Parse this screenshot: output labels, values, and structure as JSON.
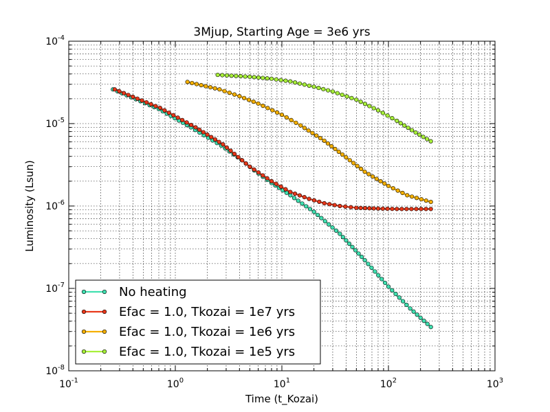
{
  "chart_data": {
    "type": "line",
    "title": "3Mjup, Starting Age = 3e6 yrs",
    "xlabel": "Time (t_Kozai)",
    "ylabel": "Luminosity (Lsun)",
    "xscale": "log",
    "yscale": "log",
    "xlim": [
      0.1,
      1000
    ],
    "ylim": [
      1e-08,
      0.0001
    ],
    "grid": true,
    "legend_position": "bottom-left",
    "x_ticks": [
      {
        "base": "10",
        "exp": "-1",
        "value": 0.1
      },
      {
        "base": "10",
        "exp": "0",
        "value": 1
      },
      {
        "base": "10",
        "exp": "1",
        "value": 10
      },
      {
        "base": "10",
        "exp": "2",
        "value": 100
      },
      {
        "base": "10",
        "exp": "3",
        "value": 1000
      }
    ],
    "y_ticks": [
      {
        "base": "10",
        "exp": "-8",
        "value": 1e-08
      },
      {
        "base": "10",
        "exp": "-7",
        "value": 1e-07
      },
      {
        "base": "10",
        "exp": "-6",
        "value": 1e-06
      },
      {
        "base": "10",
        "exp": "-5",
        "value": 1e-05
      },
      {
        "base": "10",
        "exp": "-4",
        "value": 0.0001
      }
    ],
    "series": [
      {
        "name": "No heating",
        "color": "#40e0b0",
        "x": [
          0.26,
          0.7,
          1.4,
          2.7,
          4.2,
          5.5,
          8.0,
          12,
          20,
          35,
          60,
          100,
          160,
          250
        ],
        "y": [
          2.6e-05,
          1.5e-05,
          9e-06,
          5.4e-06,
          3.6e-06,
          2.7e-06,
          1.9e-06,
          1.35e-06,
          8.5e-07,
          4.6e-07,
          2.2e-07,
          1.05e-07,
          5.7e-08,
          3.4e-08
        ]
      },
      {
        "name": "Efac = 1.0, Tkozai = 1e7 yrs",
        "color": "#e8381a",
        "x": [
          0.27,
          0.72,
          1.55,
          2.8,
          5.0,
          8.0,
          12,
          18,
          25,
          35,
          50,
          80,
          120,
          250
        ],
        "y": [
          2.6e-05,
          1.55e-05,
          9e-06,
          5.6e-06,
          3e-06,
          2e-06,
          1.48e-06,
          1.22e-06,
          1.08e-06,
          1e-06,
          9.5e-07,
          9.3e-07,
          9.2e-07,
          9.2e-07
        ]
      },
      {
        "name": "Efac = 1.0, Tkozai = 1e6 yrs",
        "color": "#f5b000",
        "x": [
          1.3,
          2.6,
          4.0,
          6.0,
          10,
          15,
          25,
          40,
          60,
          100,
          150,
          250
        ],
        "y": [
          3.2e-05,
          2.6e-05,
          2.15e-05,
          1.75e-05,
          1.28e-05,
          9.5e-06,
          6.2e-06,
          3.9e-06,
          2.6e-06,
          1.75e-06,
          1.35e-06,
          1.12e-06
        ]
      },
      {
        "name": "Efac = 1.0, Tkozai = 1e5 yrs",
        "color": "#a8f03a",
        "x": [
          2.5,
          5.0,
          8.0,
          12,
          20,
          30,
          50,
          80,
          120,
          180,
          250
        ],
        "y": [
          3.9e-05,
          3.7e-05,
          3.5e-05,
          3.25e-05,
          2.8e-05,
          2.45e-05,
          1.95e-05,
          1.45e-05,
          1.08e-05,
          7.8e-06,
          6.1e-06
        ]
      }
    ]
  }
}
